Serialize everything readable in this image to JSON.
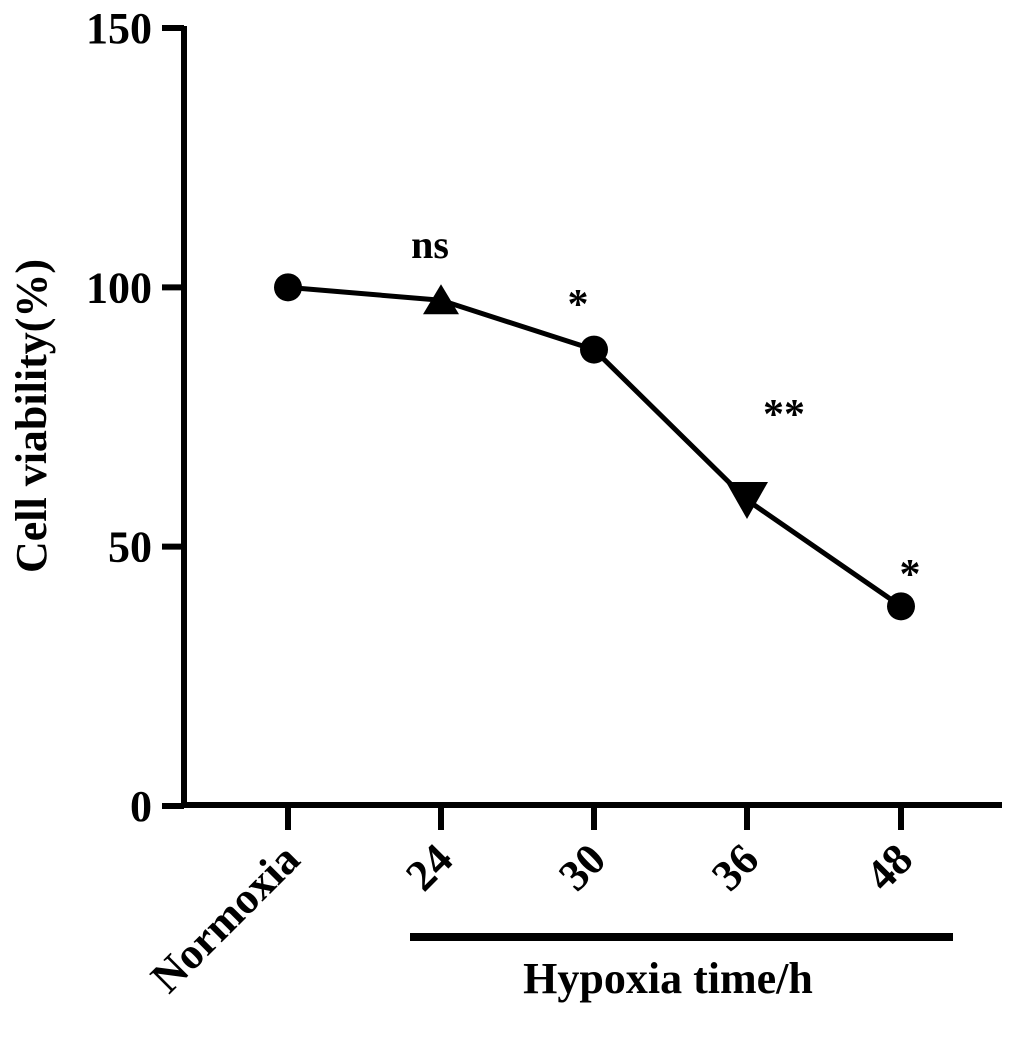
{
  "chart_data": {
    "type": "line",
    "categories": [
      "Normoxia",
      "24",
      "30",
      "36",
      "48"
    ],
    "series": [
      {
        "values": [
          100,
          97.5,
          88,
          59,
          38.5
        ],
        "markers": [
          "circle",
          "triangle-up",
          "circle",
          "triangle-down",
          "circle"
        ]
      }
    ],
    "significance": [
      "",
      "ns",
      "*",
      "**",
      "*"
    ],
    "ylabel": "Cell viability(%)",
    "group_label": "Hypoxia time/h",
    "group_span": [
      "24",
      "48"
    ],
    "ylim": [
      0,
      150
    ],
    "yticks": [
      "0",
      "50",
      "100",
      "150"
    ],
    "grid": false,
    "color": "#000000"
  }
}
